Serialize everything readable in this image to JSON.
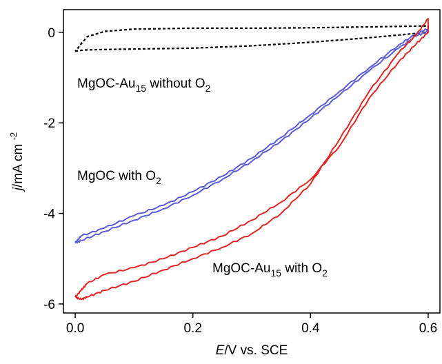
{
  "chart_data": {
    "type": "line",
    "xlim": [
      -0.02,
      0.62
    ],
    "ylim": [
      -6.2,
      0.5
    ],
    "x_ticks": [
      {
        "value": 0.0,
        "label": "0.0"
      },
      {
        "value": 0.2,
        "label": "0.2"
      },
      {
        "value": 0.4,
        "label": "0.4"
      },
      {
        "value": 0.6,
        "label": "0.6"
      }
    ],
    "y_ticks": [
      {
        "value": 0,
        "label": "0"
      },
      {
        "value": -2,
        "label": "-2"
      },
      {
        "value": -4,
        "label": "-4"
      },
      {
        "value": -6,
        "label": "-6"
      }
    ],
    "x_label_parts": {
      "italic": "E",
      "rest": "/V vs. SCE"
    },
    "y_label_parts": {
      "italic": "j",
      "rest": "/mA cm",
      "sup": "-2"
    },
    "grid": false,
    "series": [
      {
        "key": "au15_without_o2",
        "color": "#000000",
        "dash": "dotted",
        "annotation": {
          "main": "MgOC-Au",
          "sub1": "15",
          "mid": " without O",
          "sub2": "2"
        },
        "x": [
          0.0,
          0.01,
          0.02,
          0.05,
          0.1,
          0.15,
          0.2,
          0.3,
          0.4,
          0.5,
          0.55,
          0.6,
          0.6,
          0.55,
          0.5,
          0.4,
          0.3,
          0.2,
          0.1,
          0.05,
          0.02,
          0.0
        ],
        "y": [
          -0.42,
          -0.4,
          -0.39,
          -0.38,
          -0.37,
          -0.36,
          -0.35,
          -0.3,
          -0.22,
          -0.12,
          -0.06,
          0.0,
          0.14,
          0.13,
          0.12,
          0.1,
          0.09,
          0.09,
          0.07,
          0.02,
          -0.1,
          -0.42
        ]
      },
      {
        "key": "mgoc_with_o2",
        "color": "#5b5bd6",
        "dash": "solid",
        "annotation": {
          "main": "MgOC with O",
          "sub1": "",
          "mid": "",
          "sub2": "2"
        },
        "x": [
          0.0,
          0.01,
          0.05,
          0.1,
          0.15,
          0.2,
          0.25,
          0.3,
          0.35,
          0.4,
          0.45,
          0.5,
          0.55,
          0.58,
          0.6,
          0.6,
          0.58,
          0.55,
          0.5,
          0.45,
          0.4,
          0.35,
          0.3,
          0.25,
          0.2,
          0.15,
          0.1,
          0.05,
          0.01,
          0.0
        ],
        "y": [
          -4.65,
          -4.6,
          -4.4,
          -4.15,
          -3.9,
          -3.6,
          -3.25,
          -2.85,
          -2.4,
          -1.9,
          -1.38,
          -0.85,
          -0.35,
          -0.08,
          0.02,
          0.08,
          -0.03,
          -0.28,
          -0.78,
          -1.3,
          -1.82,
          -2.32,
          -2.78,
          -3.18,
          -3.52,
          -3.82,
          -4.05,
          -4.32,
          -4.5,
          -4.65
        ]
      },
      {
        "key": "au15_with_o2",
        "color": "#e02525",
        "dash": "solid",
        "annotation": {
          "main": "MgOC-Au",
          "sub1": "15",
          "mid": " with O",
          "sub2": "2"
        },
        "x": [
          0.0,
          0.01,
          0.02,
          0.05,
          0.1,
          0.15,
          0.2,
          0.25,
          0.3,
          0.35,
          0.4,
          0.45,
          0.5,
          0.55,
          0.58,
          0.6,
          0.6,
          0.58,
          0.55,
          0.5,
          0.45,
          0.4,
          0.35,
          0.3,
          0.25,
          0.2,
          0.15,
          0.1,
          0.05,
          0.02,
          0.01,
          0.0
        ],
        "y": [
          -5.85,
          -5.9,
          -5.85,
          -5.7,
          -5.5,
          -5.25,
          -5.0,
          -4.75,
          -4.45,
          -4.0,
          -3.35,
          -2.35,
          -1.3,
          -0.45,
          -0.05,
          0.3,
          0.0,
          -0.25,
          -0.65,
          -1.45,
          -2.5,
          -3.25,
          -3.75,
          -4.15,
          -4.5,
          -4.75,
          -5.0,
          -5.2,
          -5.35,
          -5.55,
          -5.7,
          -5.85
        ]
      }
    ]
  }
}
